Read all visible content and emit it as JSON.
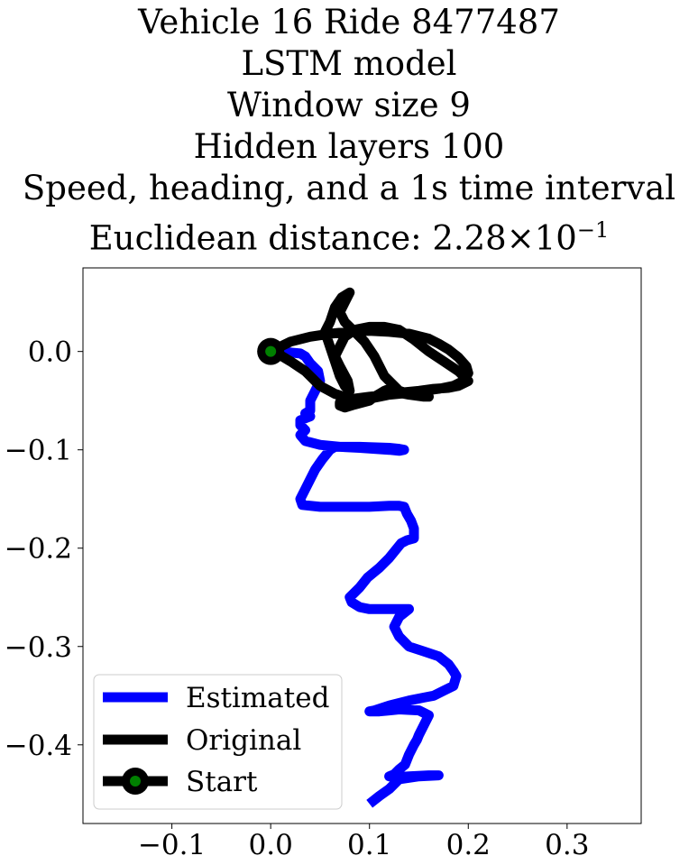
{
  "chart_data": {
    "type": "line",
    "title_lines": [
      "Vehicle 16 Ride 8477487",
      "LSTM model",
      "Window size 9",
      "Hidden layers 100",
      "Speed, heading, and a 1s time interval"
    ],
    "metric_prefix": "Euclidean distance: ",
    "metric_mantissa": "2.28",
    "metric_times": "×",
    "metric_base": "10",
    "metric_exponent": "−1",
    "xlim": [
      -0.19,
      0.375
    ],
    "ylim": [
      -0.48,
      0.085
    ],
    "xticks": [
      -0.1,
      0.0,
      0.1,
      0.2,
      0.3
    ],
    "xtick_labels": [
      "−0.1",
      "0.0",
      "0.1",
      "0.2",
      "0.3"
    ],
    "yticks": [
      0.0,
      -0.1,
      -0.2,
      -0.3,
      -0.4
    ],
    "ytick_labels": [
      "0.0",
      "−0.1",
      "−0.2",
      "−0.3",
      "−0.4"
    ],
    "grid": false,
    "legend_placement": "lower-left",
    "series": [
      {
        "name": "Estimated",
        "color": "#0000ff",
        "x": [
          0.0,
          0.02,
          0.03,
          0.035,
          0.04,
          0.048,
          0.05,
          0.045,
          0.04,
          0.04,
          0.04,
          0.035,
          0.04,
          0.035,
          0.03,
          0.03,
          0.035,
          0.03,
          0.035,
          0.05,
          0.07,
          0.09,
          0.105,
          0.12,
          0.13,
          0.135,
          0.13,
          0.12,
          0.09,
          0.08,
          0.065,
          0.06,
          0.052,
          0.045,
          0.04,
          0.035,
          0.03,
          0.032,
          0.05,
          0.07,
          0.09,
          0.1,
          0.12,
          0.13,
          0.135,
          0.138,
          0.142,
          0.145,
          0.145,
          0.138,
          0.132,
          0.12,
          0.11,
          0.098,
          0.09,
          0.085,
          0.08,
          0.082,
          0.09,
          0.1,
          0.12,
          0.14,
          0.13,
          0.125,
          0.13,
          0.14,
          0.155,
          0.17,
          0.18,
          0.185,
          0.188,
          0.185,
          0.175,
          0.165,
          0.155,
          0.14,
          0.12,
          0.105,
          0.1,
          0.11,
          0.12,
          0.13,
          0.15,
          0.16,
          0.155,
          0.15,
          0.148,
          0.145,
          0.14,
          0.136,
          0.13,
          0.125,
          0.12,
          0.125,
          0.14,
          0.16,
          0.17,
          0.15,
          0.13,
          0.12,
          0.11,
          0.1
        ],
        "y": [
          0.0,
          -0.001,
          -0.002,
          -0.005,
          -0.012,
          -0.02,
          -0.03,
          -0.04,
          -0.05,
          -0.055,
          -0.06,
          -0.063,
          -0.066,
          -0.068,
          -0.07,
          -0.075,
          -0.08,
          -0.085,
          -0.091,
          -0.095,
          -0.097,
          -0.098,
          -0.099,
          -0.1,
          -0.101,
          -0.1,
          -0.099,
          -0.098,
          -0.097,
          -0.097,
          -0.097,
          -0.1,
          -0.11,
          -0.12,
          -0.13,
          -0.14,
          -0.15,
          -0.156,
          -0.158,
          -0.158,
          -0.158,
          -0.158,
          -0.157,
          -0.157,
          -0.158,
          -0.165,
          -0.172,
          -0.18,
          -0.19,
          -0.192,
          -0.195,
          -0.21,
          -0.22,
          -0.23,
          -0.24,
          -0.245,
          -0.25,
          -0.255,
          -0.26,
          -0.262,
          -0.262,
          -0.262,
          -0.27,
          -0.28,
          -0.29,
          -0.3,
          -0.305,
          -0.31,
          -0.318,
          -0.325,
          -0.33,
          -0.34,
          -0.345,
          -0.35,
          -0.352,
          -0.355,
          -0.36,
          -0.365,
          -0.366,
          -0.366,
          -0.365,
          -0.364,
          -0.365,
          -0.37,
          -0.38,
          -0.39,
          -0.395,
          -0.4,
          -0.41,
          -0.42,
          -0.425,
          -0.43,
          -0.432,
          -0.433,
          -0.432,
          -0.431,
          -0.431,
          -0.432,
          -0.435,
          -0.445,
          -0.452,
          -0.46
        ]
      },
      {
        "name": "Original",
        "color": "#000000",
        "x": [
          0.0,
          0.01,
          0.02,
          0.04,
          0.06,
          0.08,
          0.1,
          0.12,
          0.14,
          0.16,
          0.17,
          0.18,
          0.19,
          0.198,
          0.2,
          0.195,
          0.185,
          0.17,
          0.155,
          0.14,
          0.12,
          0.1,
          0.085,
          0.075,
          0.07,
          0.07,
          0.075,
          0.085,
          0.1,
          0.105,
          0.11,
          0.115,
          0.12,
          0.125,
          0.13,
          0.14,
          0.155,
          0.16,
          0.15,
          0.14,
          0.13,
          0.125,
          0.115,
          0.11,
          0.105,
          0.095,
          0.085,
          0.075,
          0.07,
          0.075,
          0.08,
          0.072,
          0.065,
          0.06,
          0.055,
          0.06,
          0.065,
          0.07,
          0.075,
          0.08,
          0.078,
          0.07,
          0.065,
          0.07,
          0.075,
          0.085,
          0.1,
          0.115,
          0.13,
          0.145,
          0.16,
          0.175,
          0.19,
          0.195,
          0.2,
          0.19,
          0.18,
          0.165,
          0.15,
          0.13,
          0.12,
          0.11,
          0.1,
          0.09,
          0.08,
          0.065,
          0.05,
          0.035,
          0.02,
          0.01,
          0.0
        ],
        "y": [
          0.0,
          0.005,
          0.01,
          0.015,
          0.018,
          0.02,
          0.021,
          0.02,
          0.018,
          0.013,
          0.008,
          0.002,
          -0.006,
          -0.015,
          -0.022,
          -0.03,
          -0.035,
          -0.038,
          -0.04,
          -0.042,
          -0.044,
          -0.046,
          -0.048,
          -0.05,
          -0.052,
          -0.055,
          -0.057,
          -0.054,
          -0.05,
          -0.046,
          -0.043,
          -0.04,
          -0.038,
          -0.04,
          -0.042,
          -0.044,
          -0.046,
          -0.046,
          -0.045,
          -0.043,
          -0.04,
          -0.035,
          -0.025,
          -0.015,
          -0.005,
          0.01,
          0.02,
          0.03,
          0.04,
          0.05,
          0.06,
          0.055,
          0.045,
          0.03,
          0.02,
          0.005,
          -0.01,
          -0.025,
          -0.035,
          -0.04,
          -0.03,
          -0.015,
          -0.005,
          0.005,
          0.015,
          0.022,
          0.025,
          0.025,
          0.022,
          0.012,
          0.0,
          -0.01,
          -0.02,
          -0.025,
          -0.03,
          -0.035,
          -0.037,
          -0.038,
          -0.04,
          -0.042,
          -0.044,
          -0.046,
          -0.048,
          -0.05,
          -0.048,
          -0.043,
          -0.035,
          -0.02,
          -0.01,
          -0.004,
          0.0
        ]
      },
      {
        "name": "Start",
        "color": "#000000",
        "marker_fill": "#008000",
        "x": [
          0.0
        ],
        "y": [
          0.0
        ]
      }
    ]
  }
}
